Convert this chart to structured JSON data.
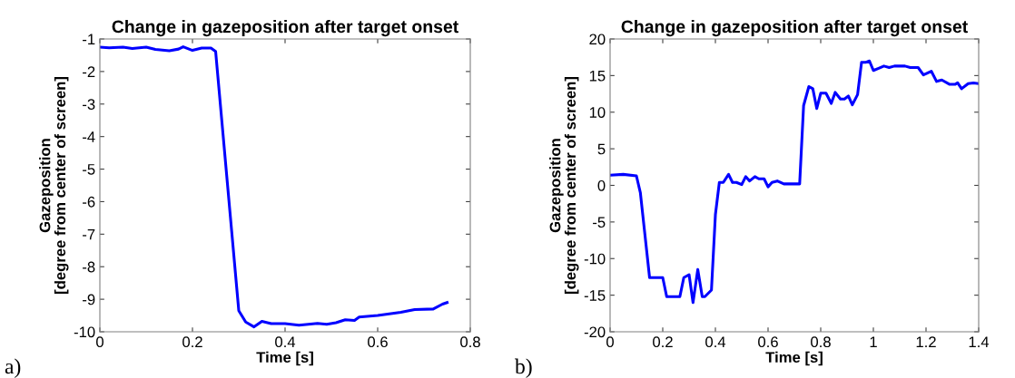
{
  "chart_data": [
    {
      "type": "line",
      "title": "Change in gazeposition after target onset",
      "xlabel": "Time [s]",
      "ylabel": "Gazeposition\n[degree from center of screen]",
      "annotations": [
        "a)"
      ],
      "x": [
        0,
        0.02,
        0.05,
        0.07,
        0.1,
        0.12,
        0.15,
        0.17,
        0.18,
        0.2,
        0.22,
        0.24,
        0.25,
        0.3,
        0.315,
        0.333,
        0.35,
        0.37,
        0.4,
        0.43,
        0.47,
        0.49,
        0.51,
        0.53,
        0.55,
        0.56,
        0.6,
        0.65,
        0.68,
        0.72,
        0.74,
        0.75
      ],
      "series": [
        {
          "color": "#0000ff",
          "values": [
            -1.25,
            -1.27,
            -1.25,
            -1.29,
            -1.25,
            -1.32,
            -1.36,
            -1.31,
            -1.24,
            -1.35,
            -1.28,
            -1.28,
            -1.38,
            -9.35,
            -9.7,
            -9.85,
            -9.68,
            -9.75,
            -9.75,
            -9.8,
            -9.74,
            -9.77,
            -9.72,
            -9.63,
            -9.65,
            -9.55,
            -9.5,
            -9.4,
            -9.32,
            -9.3,
            -9.15,
            -9.1
          ]
        }
      ],
      "xlim": [
        0,
        0.8
      ],
      "xticks": [
        0,
        0.2,
        0.4,
        0.6,
        0.8
      ],
      "ylim": [
        -10,
        -1
      ],
      "yticks": [
        -10,
        -9,
        -8,
        -7,
        -6,
        -5,
        -4,
        -3,
        -2,
        -1
      ],
      "grid": false
    },
    {
      "type": "line",
      "title": "Change in gazeposition after target onset",
      "xlabel": "Time [s]",
      "ylabel": "Gazeposition\n[degree from center of screen]",
      "annotations": [
        "b)"
      ],
      "x": [
        0,
        0.05,
        0.1,
        0.115,
        0.15,
        0.2,
        0.215,
        0.265,
        0.28,
        0.3,
        0.315,
        0.333,
        0.35,
        0.36,
        0.385,
        0.4,
        0.415,
        0.43,
        0.45,
        0.465,
        0.48,
        0.5,
        0.515,
        0.53,
        0.55,
        0.565,
        0.585,
        0.6,
        0.615,
        0.635,
        0.66,
        0.72,
        0.735,
        0.755,
        0.77,
        0.785,
        0.8,
        0.82,
        0.84,
        0.855,
        0.875,
        0.89,
        0.905,
        0.92,
        0.94,
        0.955,
        0.97,
        0.985,
        1.0,
        1.02,
        1.04,
        1.06,
        1.08,
        1.12,
        1.14,
        1.17,
        1.19,
        1.22,
        1.24,
        1.26,
        1.29,
        1.31,
        1.32,
        1.335,
        1.36,
        1.38,
        1.4
      ],
      "series": [
        {
          "color": "#0000ff",
          "values": [
            1.4,
            1.5,
            1.3,
            -1,
            -12.6,
            -12.6,
            -15.2,
            -15.2,
            -12.6,
            -12.2,
            -16,
            -11.5,
            -15.2,
            -15.2,
            -14.3,
            -4,
            0.4,
            0.4,
            1.5,
            0.4,
            0.4,
            0.1,
            1.2,
            0.6,
            1.2,
            0.9,
            0.9,
            -0.2,
            0.4,
            0.6,
            0.2,
            0.2,
            10.9,
            13.5,
            13.2,
            10.5,
            12.6,
            12.6,
            11.2,
            12.7,
            11.8,
            11.8,
            12.2,
            11.0,
            12.4,
            16.8,
            16.8,
            17.0,
            15.7,
            16.0,
            16.3,
            16.1,
            16.3,
            16.3,
            16.1,
            16.1,
            15.1,
            15.6,
            14.2,
            14.4,
            13.8,
            13.8,
            14.0,
            13.2,
            13.9,
            14.0,
            13.9
          ]
        }
      ],
      "xlim": [
        0,
        1.4
      ],
      "xticks": [
        0,
        0.2,
        0.4,
        0.6,
        0.8,
        1,
        1.2,
        1.4
      ],
      "ylim": [
        -20,
        20
      ],
      "yticks": [
        -20,
        -15,
        -10,
        -5,
        0,
        5,
        10,
        15,
        20
      ],
      "grid": false
    }
  ]
}
